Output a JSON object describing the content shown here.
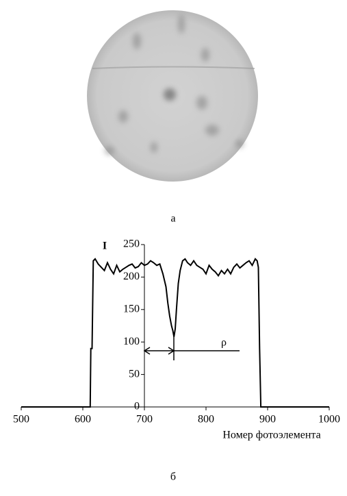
{
  "chart_data": {
    "type": "line",
    "caption_top": "а",
    "caption_bottom": "б",
    "ylabel": "I",
    "xlabel": "Номер фотоэлемента",
    "annotation": "ρ",
    "color": "#000000",
    "x": [
      500,
      612,
      613,
      615,
      617,
      620,
      625,
      630,
      635,
      640,
      645,
      650,
      655,
      660,
      665,
      670,
      675,
      680,
      685,
      690,
      695,
      700,
      705,
      710,
      715,
      720,
      725,
      730,
      735,
      738,
      741,
      744,
      746,
      748,
      750,
      752,
      755,
      758,
      762,
      766,
      770,
      775,
      780,
      785,
      790,
      795,
      800,
      805,
      810,
      815,
      820,
      825,
      830,
      835,
      840,
      845,
      850,
      855,
      860,
      865,
      870,
      875,
      880,
      883,
      885,
      887,
      889,
      890,
      1000
    ],
    "values": [
      0,
      0,
      90,
      90,
      225,
      228,
      220,
      215,
      210,
      222,
      212,
      205,
      218,
      208,
      212,
      215,
      218,
      220,
      214,
      216,
      222,
      218,
      220,
      225,
      222,
      218,
      220,
      205,
      185,
      160,
      140,
      125,
      118,
      108,
      120,
      150,
      190,
      210,
      225,
      228,
      222,
      218,
      225,
      218,
      215,
      212,
      205,
      218,
      212,
      208,
      202,
      210,
      205,
      212,
      205,
      215,
      220,
      214,
      218,
      222,
      225,
      218,
      228,
      225,
      215,
      90,
      0,
      0,
      0
    ],
    "xlim": [
      500,
      1000
    ],
    "xticks": [
      500,
      600,
      700,
      800,
      900,
      1000
    ],
    "ylim": [
      0,
      250
    ],
    "yticks": [
      0,
      50,
      100,
      150,
      200,
      250
    ]
  }
}
